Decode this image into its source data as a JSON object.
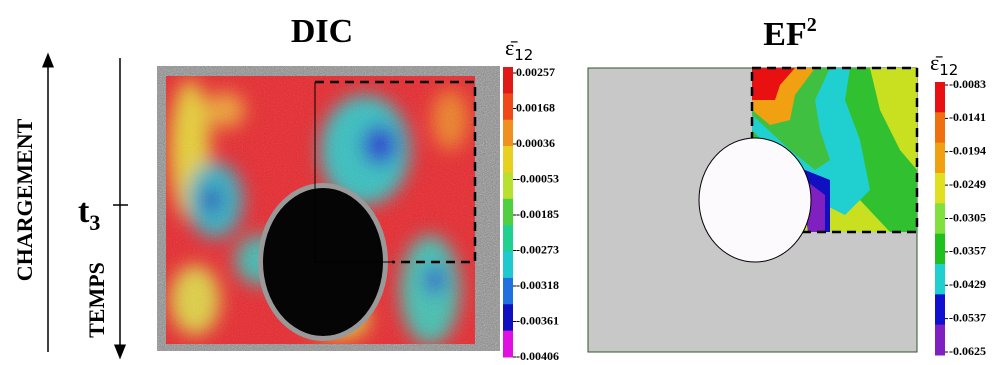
{
  "left": {
    "load_label": "CHARGEMENT",
    "time_label": "TEMPS",
    "time_symbol": "t",
    "time_index": "3"
  },
  "panels": [
    {
      "title": "DIC",
      "bar_symbol": "ε̄",
      "bar_index": "12",
      "bar_labels": [
        "0.00257",
        "0.00168",
        "0.00036",
        "-0.00053",
        "-0.00185",
        "-0.00273",
        "-0.00318",
        "-0.00361",
        "-0.00406"
      ]
    },
    {
      "title": "EF",
      "title_sup": "2",
      "bar_symbol": "ε̄",
      "bar_index": "12",
      "bar_labels": [
        "-0.0083",
        "-0.0141",
        "-0.0194",
        "-0.0249",
        "-0.0305",
        "-0.0357",
        "-0.0429",
        "-0.0537",
        "-0.0625"
      ]
    }
  ]
}
